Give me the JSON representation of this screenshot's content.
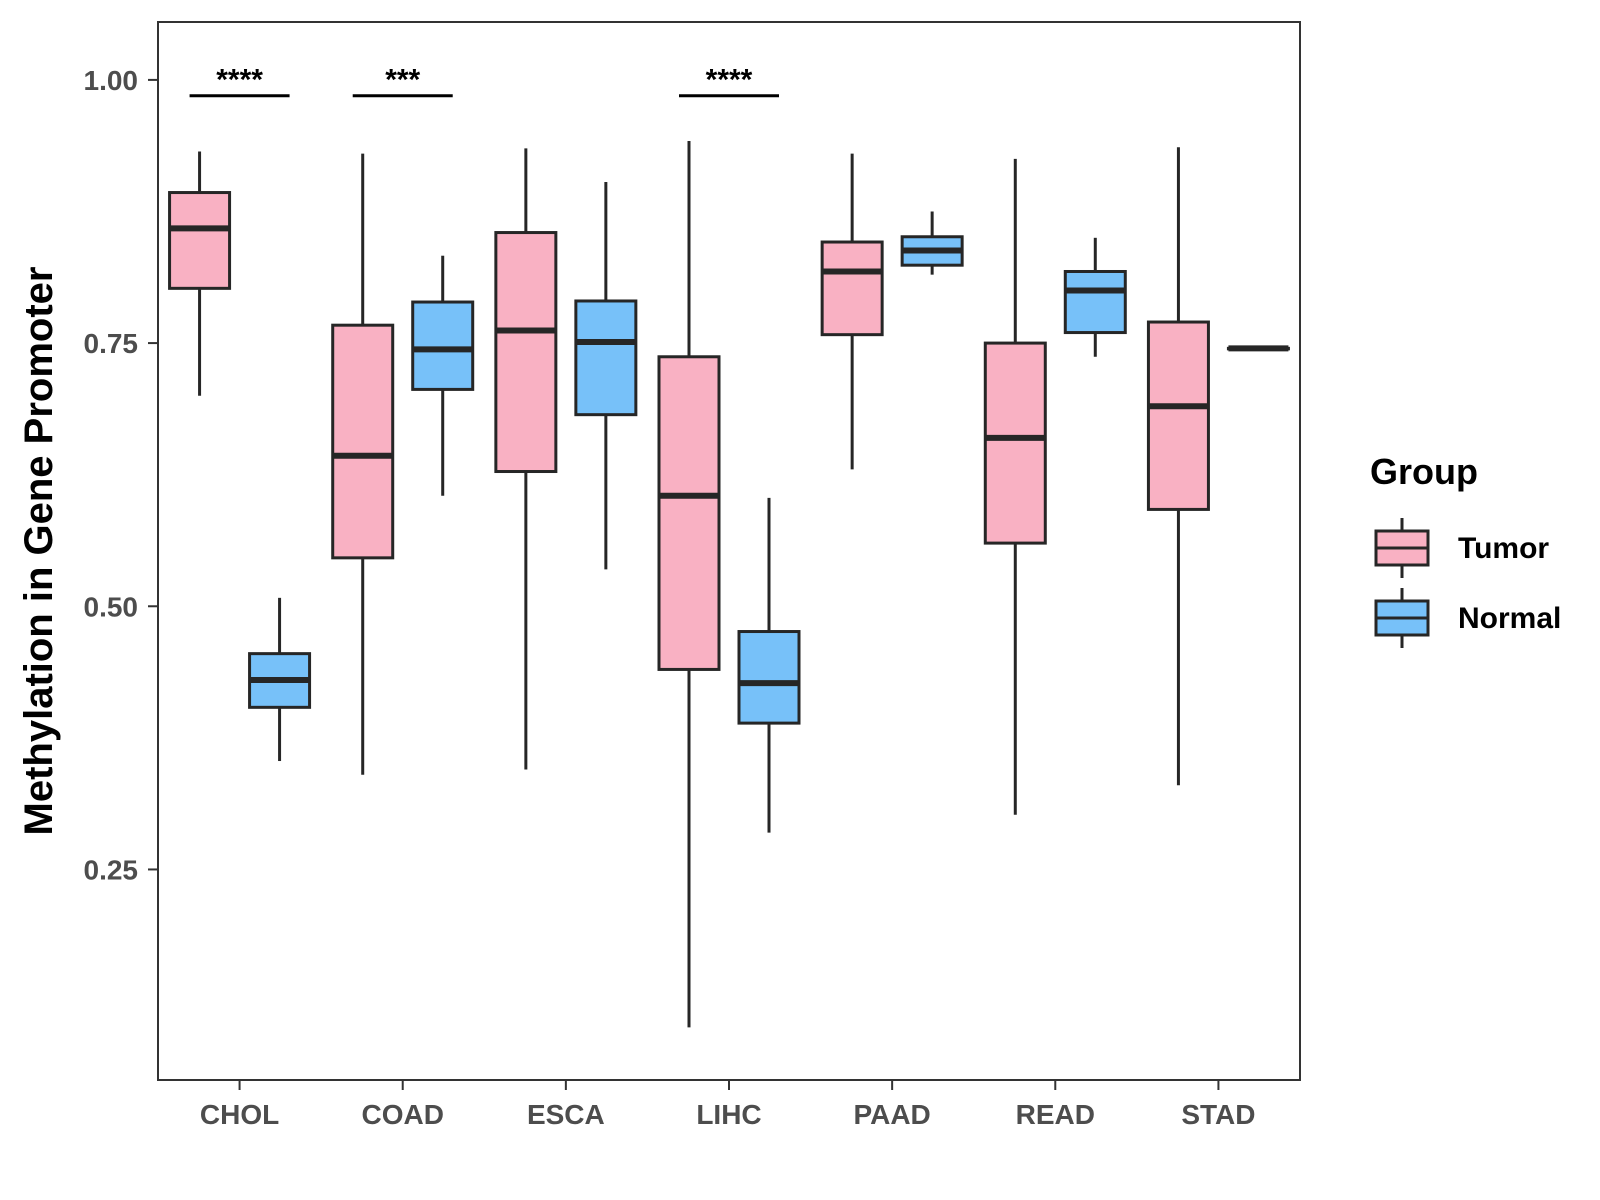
{
  "chart_data": {
    "type": "boxplot",
    "title": "",
    "xlabel": "",
    "ylabel": "Methylation in Gene Promoter",
    "ylim": [
      0.05,
      1.055
    ],
    "yticks": [
      {
        "value": 0.25,
        "label": "0.25"
      },
      {
        "value": 0.5,
        "label": "0.50"
      },
      {
        "value": 0.75,
        "label": "0.75"
      },
      {
        "value": 1.0,
        "label": "1.00"
      }
    ],
    "categories": [
      "CHOL",
      "COAD",
      "ESCA",
      "LIHC",
      "PAAD",
      "READ",
      "STAD"
    ],
    "legend": {
      "title": "Group",
      "position": "right",
      "entries": [
        {
          "name": "Tumor",
          "color": "#F9B1C3"
        },
        {
          "name": "Normal",
          "color": "#77C1F9"
        }
      ]
    },
    "series": [
      {
        "name": "Tumor",
        "color": "#F9B1C3",
        "boxes": [
          {
            "min": 0.7,
            "q1": 0.802,
            "median": 0.859,
            "q3": 0.893,
            "max": 0.932
          },
          {
            "min": 0.34,
            "q1": 0.546,
            "median": 0.643,
            "q3": 0.767,
            "max": 0.93
          },
          {
            "min": 0.345,
            "q1": 0.628,
            "median": 0.762,
            "q3": 0.855,
            "max": 0.935
          },
          {
            "min": 0.1,
            "q1": 0.44,
            "median": 0.605,
            "q3": 0.737,
            "max": 0.942
          },
          {
            "min": 0.63,
            "q1": 0.758,
            "median": 0.818,
            "q3": 0.846,
            "max": 0.93
          },
          {
            "min": 0.302,
            "q1": 0.56,
            "median": 0.66,
            "q3": 0.75,
            "max": 0.925
          },
          {
            "min": 0.33,
            "q1": 0.592,
            "median": 0.69,
            "q3": 0.77,
            "max": 0.936
          }
        ]
      },
      {
        "name": "Normal",
        "color": "#77C1F9",
        "boxes": [
          {
            "min": 0.353,
            "q1": 0.404,
            "median": 0.43,
            "q3": 0.455,
            "max": 0.508
          },
          {
            "min": 0.605,
            "q1": 0.706,
            "median": 0.744,
            "q3": 0.789,
            "max": 0.833
          },
          {
            "min": 0.535,
            "q1": 0.682,
            "median": 0.751,
            "q3": 0.79,
            "max": 0.903
          },
          {
            "min": 0.285,
            "q1": 0.389,
            "median": 0.427,
            "q3": 0.476,
            "max": 0.603
          },
          {
            "min": 0.815,
            "q1": 0.824,
            "median": 0.838,
            "q3": 0.851,
            "max": 0.875
          },
          {
            "min": 0.737,
            "q1": 0.76,
            "median": 0.8,
            "q3": 0.818,
            "max": 0.85
          },
          {
            "min": 0.745,
            "q1": 0.745,
            "median": 0.745,
            "q3": 0.745,
            "max": 0.745
          }
        ]
      }
    ],
    "significance": [
      {
        "category": "CHOL",
        "label": "****",
        "y": 0.985
      },
      {
        "category": "COAD",
        "label": "***",
        "y": 0.985
      },
      {
        "category": "LIHC",
        "label": "****",
        "y": 0.985
      }
    ]
  }
}
